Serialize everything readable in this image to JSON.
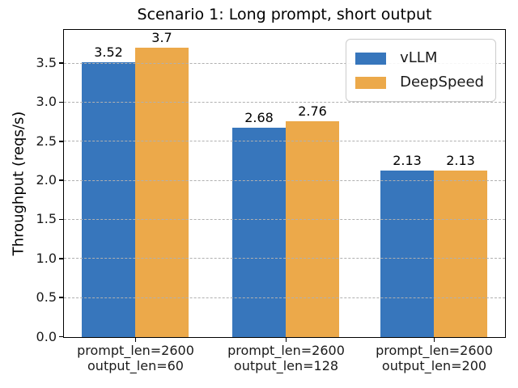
{
  "chart_data": {
    "type": "bar",
    "title": "Scenario 1: Long prompt, short output",
    "xlabel": "",
    "ylabel": "Throughput (reqs/s)",
    "categories": [
      [
        "prompt_len=2600",
        "output_len=60"
      ],
      [
        "prompt_len=2600",
        "output_len=128"
      ],
      [
        "prompt_len=2600",
        "output_len=200"
      ]
    ],
    "series": [
      {
        "name": "vLLM",
        "color": "#3776bc",
        "values": [
          3.52,
          2.68,
          2.13
        ],
        "value_labels": [
          "3.52",
          "2.68",
          "2.13"
        ]
      },
      {
        "name": "DeepSpeed",
        "color": "#eca94a",
        "values": [
          3.7,
          2.76,
          2.13
        ],
        "value_labels": [
          "3.7",
          "2.76",
          "2.13"
        ]
      }
    ],
    "ylim": [
      0,
      3.92
    ],
    "yticks": [
      0.0,
      0.5,
      1.0,
      1.5,
      2.0,
      2.5,
      3.0,
      3.5
    ],
    "ytick_labels": [
      "0.0",
      "0.5",
      "1.0",
      "1.5",
      "2.0",
      "2.5",
      "3.0",
      "3.5"
    ],
    "grid": {
      "axis": "y",
      "style": "dashed",
      "color": "#b0b0b0",
      "drawn_above_bars": true
    },
    "legend": {
      "position": "upper right"
    }
  }
}
